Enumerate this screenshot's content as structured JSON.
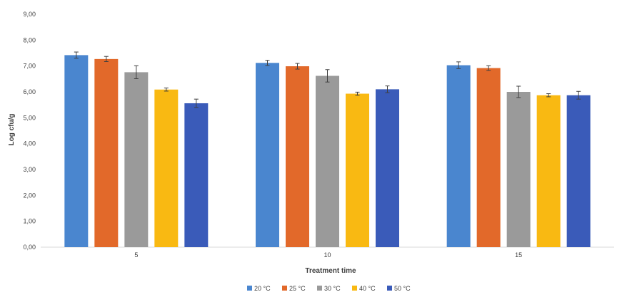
{
  "chart_data": {
    "type": "bar",
    "title": "",
    "xlabel": "Treatment time",
    "ylabel": "Log cfu/g",
    "categories": [
      "5",
      "10",
      "15"
    ],
    "ylim": [
      0,
      9
    ],
    "ytick_step": 1,
    "ytick_labels": [
      "0,00",
      "1,00",
      "2,00",
      "3,00",
      "4,00",
      "5,00",
      "6,00",
      "7,00",
      "8,00",
      "9,00"
    ],
    "grid": false,
    "legend_position": "bottom",
    "error_bars": true,
    "series": [
      {
        "name": "20 °C",
        "color": "#4a86cf",
        "values": [
          7.42,
          7.12,
          7.03
        ],
        "errors": [
          0.12,
          0.1,
          0.13
        ]
      },
      {
        "name": "25 °C",
        "color": "#e2692a",
        "values": [
          7.27,
          6.99,
          6.92
        ],
        "errors": [
          0.1,
          0.11,
          0.09
        ]
      },
      {
        "name": "30 °C",
        "color": "#9a9a9a",
        "values": [
          6.76,
          6.62,
          6.0
        ],
        "errors": [
          0.25,
          0.24,
          0.22
        ]
      },
      {
        "name": "40 °C",
        "color": "#f9b912",
        "values": [
          6.09,
          5.93,
          5.87
        ],
        "errors": [
          0.06,
          0.06,
          0.06
        ]
      },
      {
        "name": "50 °C",
        "color": "#3a5bb9",
        "values": [
          5.56,
          6.1,
          5.87
        ],
        "errors": [
          0.16,
          0.13,
          0.15
        ]
      }
    ]
  }
}
